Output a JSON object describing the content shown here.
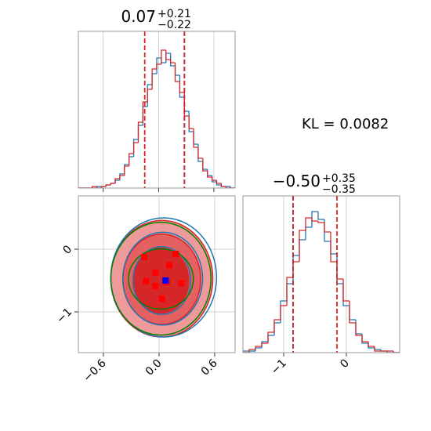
{
  "chart_data": [
    {
      "type": "histogram",
      "title": "0.07",
      "title_sup": "+0.21",
      "title_sub": "−0.22",
      "bins": [
        -0.87,
        -0.82,
        -0.77,
        -0.72,
        -0.67,
        -0.62,
        -0.57,
        -0.52,
        -0.47,
        -0.42,
        -0.37,
        -0.32,
        -0.27,
        -0.22,
        -0.17,
        -0.12,
        -0.07,
        -0.02,
        0.03,
        0.08,
        0.13,
        0.18,
        0.23,
        0.28,
        0.33,
        0.38,
        0.43,
        0.48,
        0.53,
        0.58,
        0.63,
        0.68,
        0.73,
        0.78,
        0.83
      ],
      "series": [
        {
          "color": "#1f77b4",
          "values": [
            0,
            0,
            0,
            0,
            1,
            1,
            2,
            3,
            5,
            9,
            15,
            20,
            31,
            40,
            52,
            66,
            73,
            83,
            80,
            86,
            78,
            72,
            58,
            49,
            36,
            28,
            17,
            12,
            8,
            4,
            2,
            1,
            1,
            0
          ]
        },
        {
          "color": "#d62728",
          "values": [
            0,
            0,
            0,
            1,
            0,
            1,
            2,
            3,
            6,
            8,
            14,
            22,
            29,
            42,
            55,
            63,
            76,
            79,
            88,
            82,
            80,
            68,
            61,
            46,
            38,
            26,
            19,
            11,
            7,
            5,
            3,
            1,
            0,
            0
          ]
        }
      ],
      "quantiles": [
        {
          "color": "#1f77b4",
          "values": [
            0.28
          ]
        },
        {
          "color": "#d62728",
          "values": [
            -0.15,
            0.28
          ]
        }
      ],
      "xlim": [
        -0.87,
        0.83
      ],
      "ylim": [
        0,
        100
      ],
      "xticks": [
        -0.6,
        0,
        0.6
      ],
      "tick_labels": false,
      "grid": true
    },
    {
      "type": "contour",
      "xlim": [
        -0.87,
        0.82
      ],
      "ylim": [
        -1.65,
        0.85
      ],
      "xticks": [
        {
          "value": -0.6,
          "label": "−0.6"
        },
        {
          "value": 0,
          "label": "0.0"
        },
        {
          "value": 0.6,
          "label": "0.6"
        }
      ],
      "yticks": [
        {
          "value": -1,
          "label": "−1"
        },
        0
      ],
      "grid": true,
      "contours": [
        {
          "color": "#d62728",
          "fills": [
            "#ee9a9a",
            "#e56060",
            "#d62728"
          ],
          "levels": [
            {
              "cx": 0.03,
              "cy": -0.47,
              "rx": 0.55,
              "ry": 0.93
            },
            {
              "cx": 0.03,
              "cy": -0.48,
              "rx": 0.42,
              "ry": 0.72
            },
            {
              "cx": 0.02,
              "cy": -0.5,
              "rx": 0.3,
              "ry": 0.52
            }
          ]
        },
        {
          "color": "#1f77b4",
          "levels": [
            {
              "cx": 0.05,
              "cy": -0.45,
              "rx": 0.57,
              "ry": 0.95
            },
            {
              "cx": 0.04,
              "cy": -0.47,
              "rx": 0.43,
              "ry": 0.74
            },
            {
              "cx": 0.03,
              "cy": -0.5,
              "rx": 0.31,
              "ry": 0.54
            }
          ]
        },
        {
          "color": "#008000",
          "levels": [
            {
              "cx": 0.02,
              "cy": -0.47,
              "rx": 0.54,
              "ry": 0.9
            },
            {
              "cx": 0.02,
              "cy": -0.475,
              "rx": 0.35,
              "ry": 0.48
            }
          ]
        }
      ],
      "points": {
        "color": "#ff0000",
        "x": [
          -0.16,
          0.18,
          0.11,
          -0.04,
          -0.14,
          0.085,
          0.24,
          -0.04,
          0.03
        ],
        "y": [
          -0.125,
          -0.075,
          -0.26,
          -0.375,
          -0.51,
          -0.525,
          -0.54,
          -0.59,
          -0.79
        ]
      },
      "truth": {
        "color": "#0000ff",
        "x": 0.07,
        "y": -0.5
      }
    },
    {
      "type": "histogram",
      "title": "−0.50",
      "title_sup": "+0.35",
      "title_sub": "−0.35",
      "bins": [
        -1.65,
        -1.55,
        -1.45,
        -1.35,
        -1.25,
        -1.15,
        -1.05,
        -0.95,
        -0.85,
        -0.75,
        -0.65,
        -0.55,
        -0.45,
        -0.35,
        -0.25,
        -0.15,
        -0.05,
        0.05,
        0.15,
        0.25,
        0.35,
        0.45,
        0.55,
        0.65,
        0.75,
        0.85
      ],
      "series": [
        {
          "color": "#1f77b4",
          "values": [
            1,
            1,
            3,
            7,
            11,
            19,
            33,
            44,
            62,
            72,
            80,
            90,
            85,
            71,
            63,
            44,
            30,
            21,
            12,
            6,
            3,
            2,
            1,
            0,
            0
          ]
        },
        {
          "color": "#d62728",
          "values": [
            0,
            2,
            4,
            6,
            13,
            21,
            30,
            48,
            58,
            78,
            86,
            84,
            83,
            77,
            58,
            47,
            33,
            19,
            11,
            7,
            4,
            1,
            1,
            1,
            0
          ]
        }
      ],
      "quantiles": [
        {
          "color": "#1f77b4",
          "values": [
            -0.85
          ]
        },
        {
          "color": "#d62728",
          "values": [
            -0.85,
            -0.15
          ]
        }
      ],
      "xlim": [
        -1.65,
        0.85
      ],
      "ylim": [
        0,
        100
      ],
      "xticks": [
        {
          "value": -1,
          "label": "−1"
        },
        0
      ],
      "tick_labels": true,
      "grid": true
    }
  ],
  "annotation": "KL = 0.0082"
}
